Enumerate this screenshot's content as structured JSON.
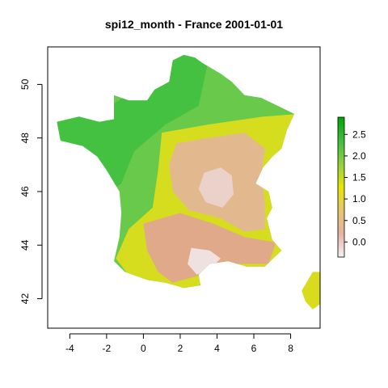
{
  "title": "spi12_month - France 2001-01-01",
  "map": {
    "x_ticks": [
      "-4",
      "-2",
      "0",
      "2",
      "4",
      "6",
      "8"
    ],
    "y_ticks": [
      "42",
      "44",
      "46",
      "48",
      "50"
    ],
    "xlim": [
      -5.2,
      9.6
    ],
    "ylim": [
      40.9,
      51.4
    ]
  },
  "legend": {
    "ticks": [
      "0.0",
      "0.5",
      "1.0",
      "1.5",
      "2.0",
      "2.5"
    ],
    "range": [
      -0.35,
      2.9
    ],
    "colors": [
      "#f2f2f2",
      "#e6b3a3",
      "#e8c56e",
      "#e6e600",
      "#8fd13f",
      "#3fbf3f",
      "#00a600"
    ]
  }
}
